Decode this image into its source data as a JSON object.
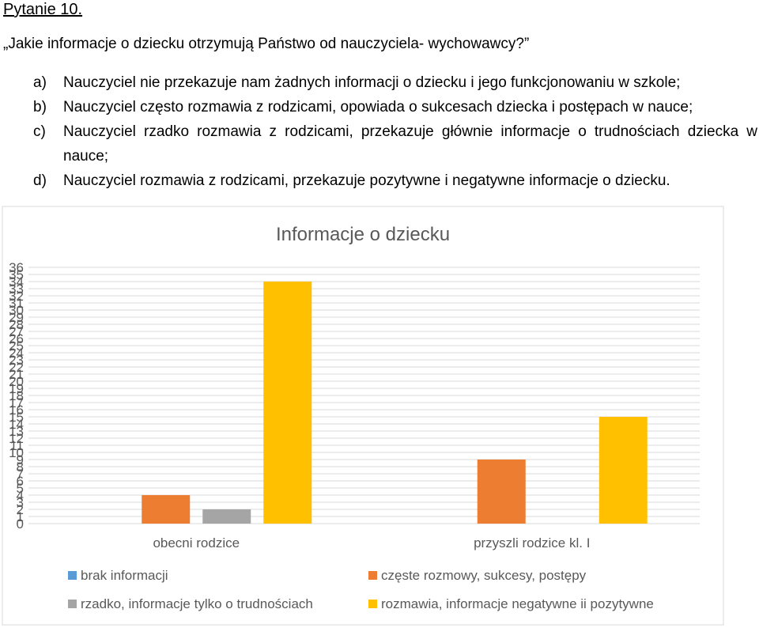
{
  "document": {
    "heading": "Pytanie 10.",
    "question": "„Jakie informacje o dziecku otrzymują Państwo od nauczyciela- wychowawcy?”",
    "options": [
      {
        "letter": "a)",
        "text": "Nauczyciel nie przekazuje nam żadnych informacji o dziecku i jego funkcjonowaniu w szkole;"
      },
      {
        "letter": "b)",
        "text": "Nauczyciel często rozmawia z rodzicami, opowiada o sukcesach dziecka i postępach w nauce;"
      },
      {
        "letter": "c)",
        "text": "Nauczyciel rzadko rozmawia z rodzicami, przekazuje głównie informacje o trudnościach dziecka w nauce;"
      },
      {
        "letter": "d)",
        "text": "Nauczyciel rozmawia z rodzicami, przekazuje pozytywne i negatywne informacje o dziecku."
      }
    ]
  },
  "chart_data": {
    "type": "bar",
    "title": "Informacje o dziecku",
    "categories": [
      "obecni rodzice",
      "przyszli rodzice kl. I"
    ],
    "series": [
      {
        "name": "brak informacji",
        "color": "#5B9BD5",
        "values": [
          0,
          0
        ]
      },
      {
        "name": "częste rozmowy, sukcesy, postępy",
        "color": "#ED7D31",
        "values": [
          4,
          9
        ]
      },
      {
        "name": "rzadko, informacje tylko o trudnościach",
        "color": "#A5A5A5",
        "values": [
          2,
          0
        ]
      },
      {
        "name": "rozmawia, informacje negatywne ii pozytywne",
        "color": "#FFC000",
        "values": [
          34,
          15
        ]
      }
    ],
    "ylim": [
      0,
      36
    ],
    "ytick_step": 1,
    "grid": true,
    "legend_position": "bottom"
  }
}
